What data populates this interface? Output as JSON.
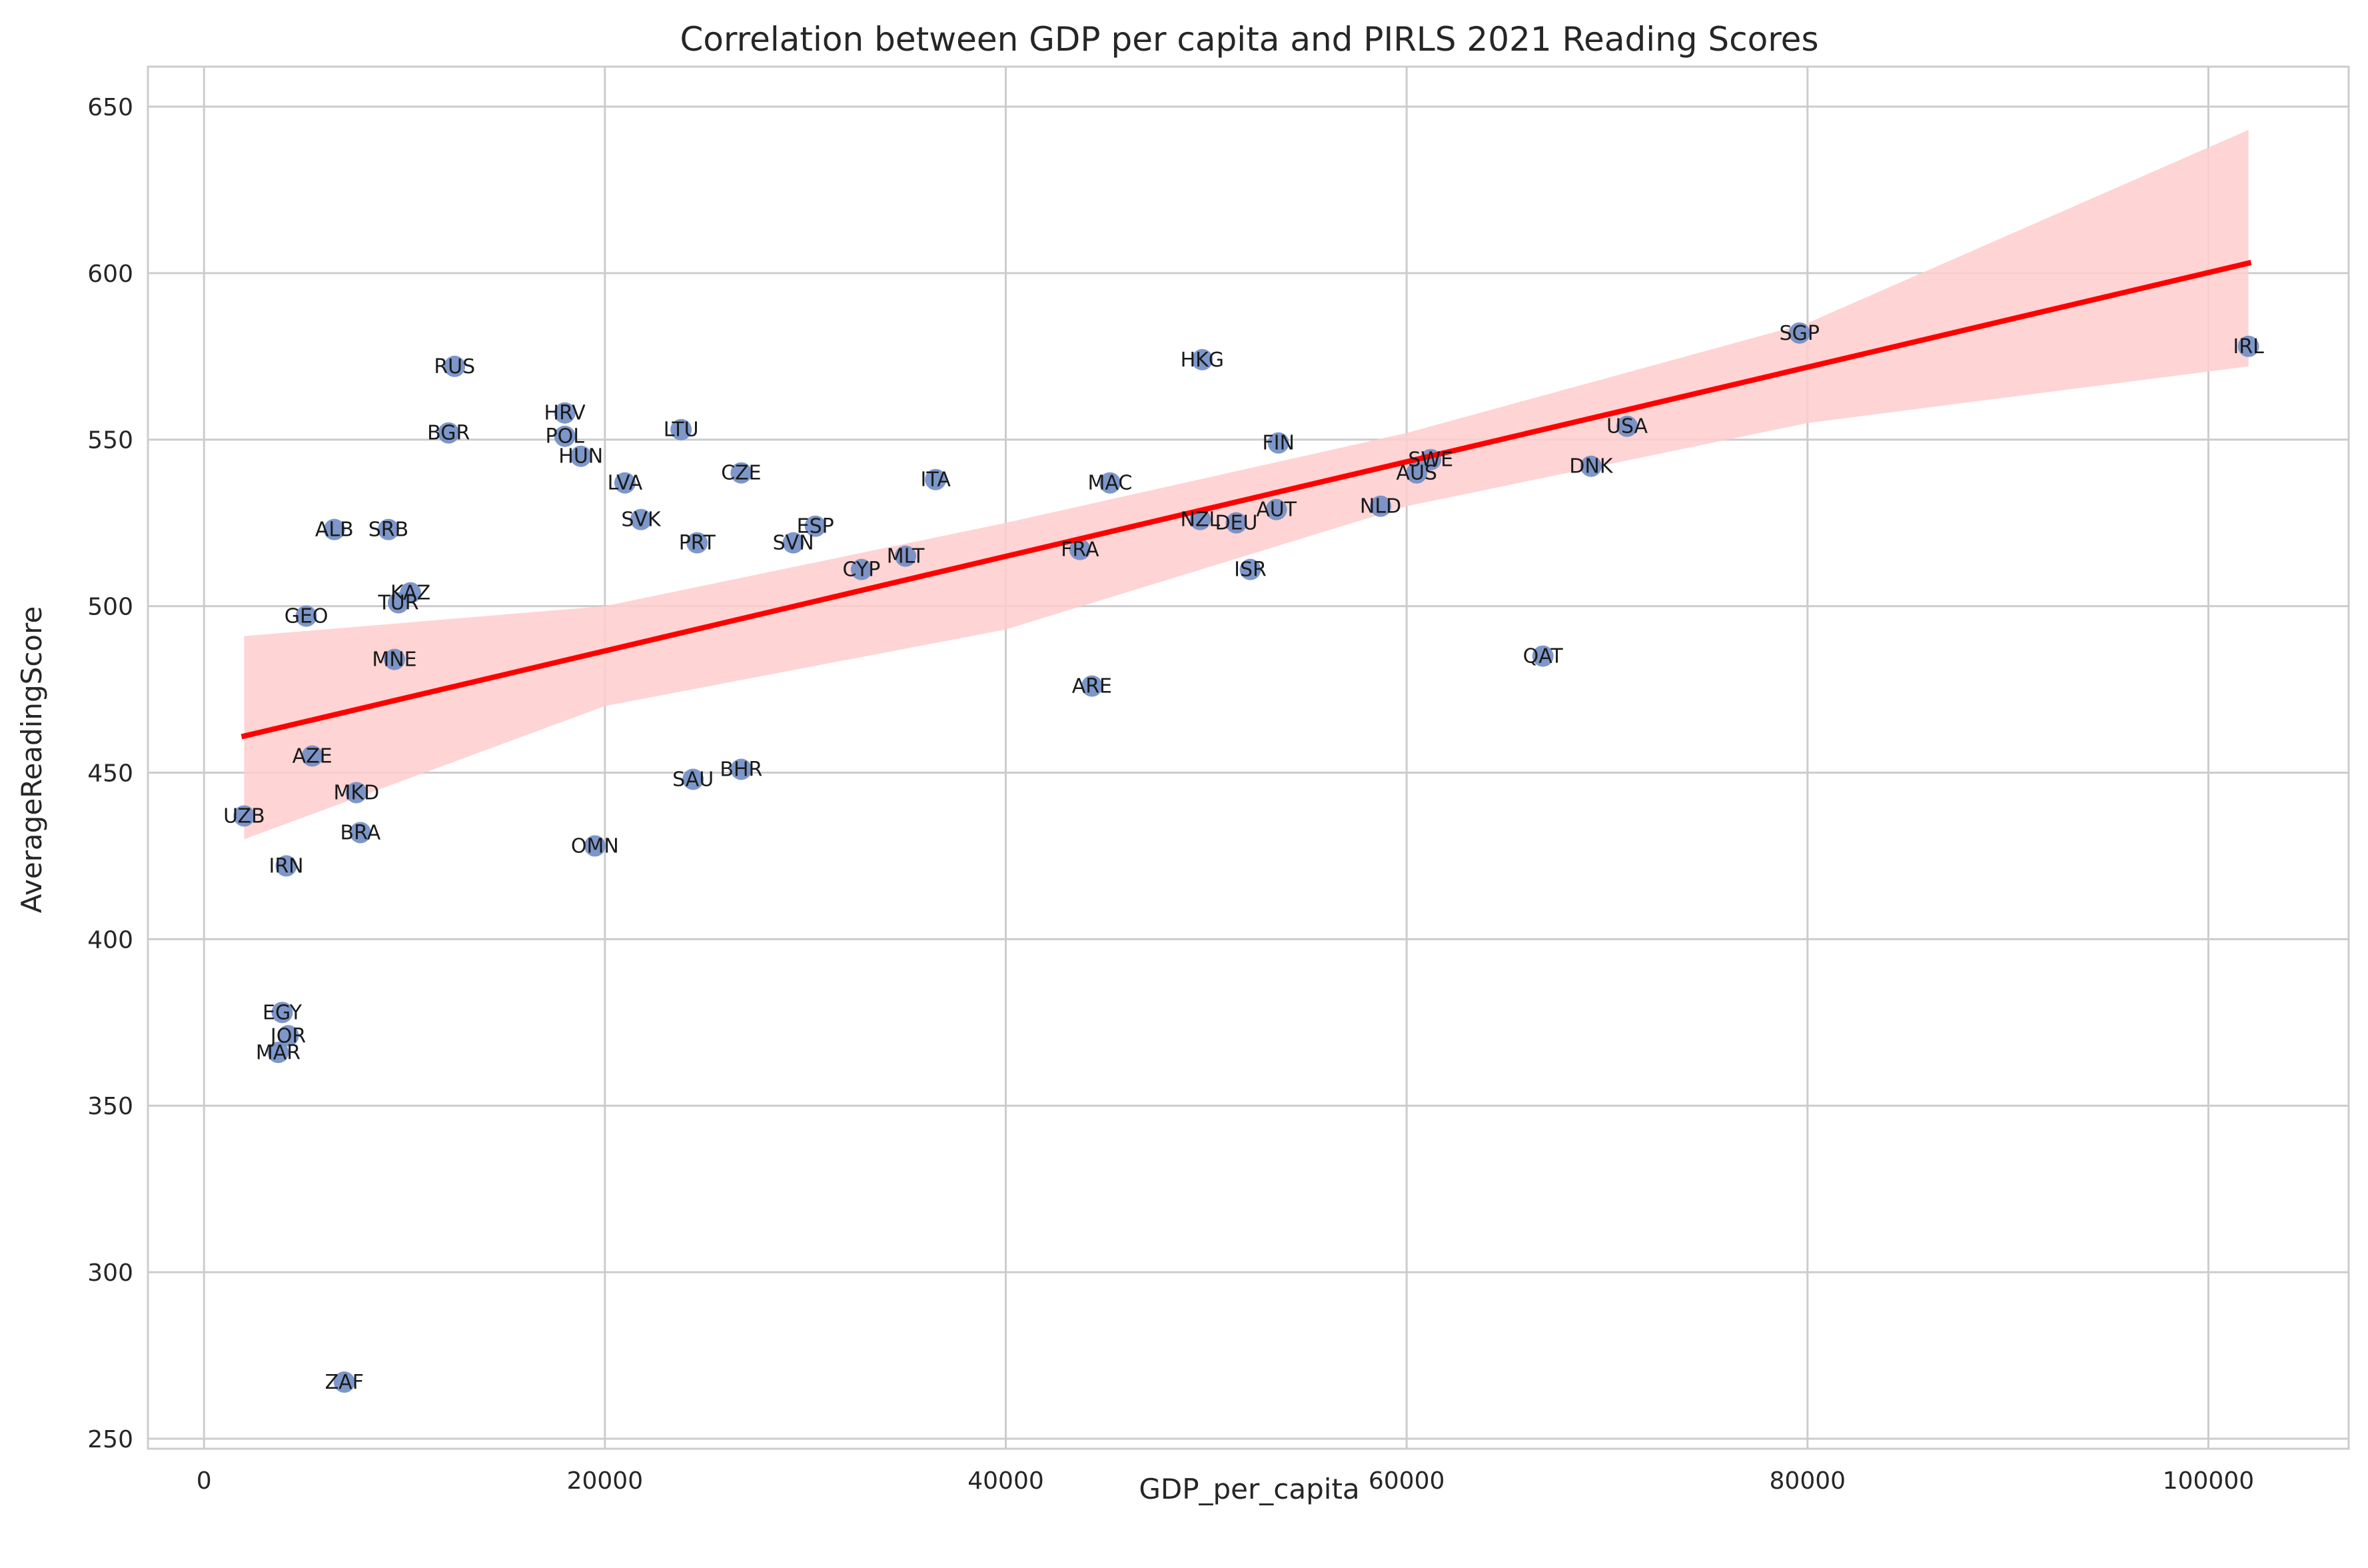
{
  "chart_data": {
    "type": "scatter",
    "title": "Correlation between GDP per capita and PIRLS 2021 Reading Scores",
    "xlabel": "GDP_per_capita",
    "ylabel": "AverageReadingScore",
    "xlim": [
      -2800,
      107000
    ],
    "ylim": [
      247,
      662
    ],
    "xticks": [
      0,
      20000,
      40000,
      60000,
      80000,
      100000
    ],
    "yticks": [
      250,
      300,
      350,
      400,
      450,
      500,
      550,
      600,
      650
    ],
    "grid": true,
    "colors": {
      "points": "#6f8cc4",
      "points_alt": "#8a7aa8",
      "regression": "#ff0000",
      "band": "#ffcccc"
    },
    "regression": {
      "x": [
        2000,
        102000
      ],
      "y": [
        461,
        603
      ],
      "band_upper": [
        [
          2000,
          491
        ],
        [
          20000,
          500
        ],
        [
          40000,
          525
        ],
        [
          60000,
          552
        ],
        [
          80000,
          585
        ],
        [
          102000,
          643
        ]
      ],
      "band_lower": [
        [
          2000,
          430
        ],
        [
          20000,
          470
        ],
        [
          40000,
          493
        ],
        [
          60000,
          530
        ],
        [
          80000,
          555
        ],
        [
          102000,
          572
        ]
      ]
    },
    "points": [
      {
        "label": "RUS",
        "x": 12500,
        "y": 572
      },
      {
        "label": "HRV",
        "x": 18000,
        "y": 558
      },
      {
        "label": "BGR",
        "x": 12200,
        "y": 552
      },
      {
        "label": "POL",
        "x": 18000,
        "y": 551
      },
      {
        "label": "HUN",
        "x": 18800,
        "y": 545
      },
      {
        "label": "LTU",
        "x": 23800,
        "y": 553
      },
      {
        "label": "CZE",
        "x": 26800,
        "y": 540
      },
      {
        "label": "LVA",
        "x": 21000,
        "y": 537
      },
      {
        "label": "SVK",
        "x": 21800,
        "y": 526
      },
      {
        "label": "ALB",
        "x": 6500,
        "y": 523
      },
      {
        "label": "SRB",
        "x": 9200,
        "y": 523
      },
      {
        "label": "PRT",
        "x": 24600,
        "y": 519
      },
      {
        "label": "SVN",
        "x": 29400,
        "y": 519
      },
      {
        "label": "ESP",
        "x": 30500,
        "y": 524
      },
      {
        "label": "ITA",
        "x": 36500,
        "y": 538
      },
      {
        "label": "MLT",
        "x": 35000,
        "y": 515
      },
      {
        "label": "CYP",
        "x": 32800,
        "y": 511
      },
      {
        "label": "KAZ",
        "x": 10300,
        "y": 504
      },
      {
        "label": "TUR",
        "x": 9700,
        "y": 501
      },
      {
        "label": "GEO",
        "x": 5100,
        "y": 497
      },
      {
        "label": "MNE",
        "x": 9500,
        "y": 484
      },
      {
        "label": "AZE",
        "x": 5400,
        "y": 455
      },
      {
        "label": "MKD",
        "x": 7600,
        "y": 444
      },
      {
        "label": "UZB",
        "x": 2000,
        "y": 437
      },
      {
        "label": "BRA",
        "x": 7800,
        "y": 432
      },
      {
        "label": "IRN",
        "x": 4100,
        "y": 422
      },
      {
        "label": "OMN",
        "x": 19500,
        "y": 428
      },
      {
        "label": "SAU",
        "x": 24400,
        "y": 448
      },
      {
        "label": "BHR",
        "x": 26800,
        "y": 451
      },
      {
        "label": "EGY",
        "x": 3900,
        "y": 378
      },
      {
        "label": "JOR",
        "x": 4200,
        "y": 371
      },
      {
        "label": "MAR",
        "x": 3700,
        "y": 366
      },
      {
        "label": "ZAF",
        "x": 7000,
        "y": 267
      },
      {
        "label": "HKG",
        "x": 49800,
        "y": 574
      },
      {
        "label": "MAC",
        "x": 45200,
        "y": 537
      },
      {
        "label": "FRA",
        "x": 43700,
        "y": 517
      },
      {
        "label": "ARE",
        "x": 44300,
        "y": 476
      },
      {
        "label": "FIN",
        "x": 53600,
        "y": 549
      },
      {
        "label": "NZL",
        "x": 49700,
        "y": 526
      },
      {
        "label": "DEU",
        "x": 51500,
        "y": 525
      },
      {
        "label": "AUT",
        "x": 53500,
        "y": 529
      },
      {
        "label": "ISR",
        "x": 52200,
        "y": 511
      },
      {
        "label": "NLD",
        "x": 58700,
        "y": 530
      },
      {
        "label": "SWE",
        "x": 61200,
        "y": 544
      },
      {
        "label": "AUS",
        "x": 60500,
        "y": 540
      },
      {
        "label": "QAT",
        "x": 66800,
        "y": 485
      },
      {
        "label": "DNK",
        "x": 69200,
        "y": 542
      },
      {
        "label": "USA",
        "x": 71000,
        "y": 554
      },
      {
        "label": "SGP",
        "x": 79600,
        "y": 582
      },
      {
        "label": "IRL",
        "x": 102000,
        "y": 578
      }
    ]
  }
}
